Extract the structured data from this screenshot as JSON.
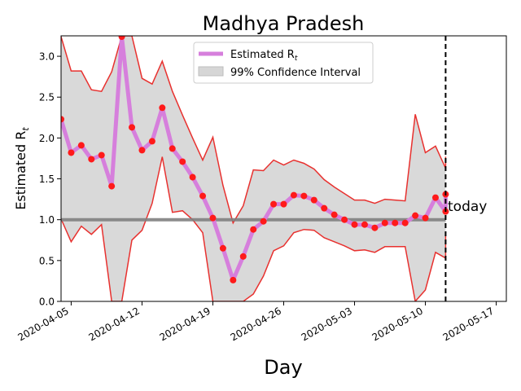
{
  "chart_data": {
    "type": "line",
    "title": "Madhya Pradesh",
    "xlabel": "Day",
    "ylabel": "Estimated R",
    "ylabel_sub": "t",
    "start_date": "2020-04-04",
    "xlim": [
      "2020-04-04",
      "2020-05-18"
    ],
    "ylim": [
      0,
      3.25
    ],
    "x_ticks": [
      "2020-04-05",
      "2020-04-12",
      "2020-04-19",
      "2020-04-26",
      "2020-05-03",
      "2020-05-10",
      "2020-05-17"
    ],
    "y_ticks": [
      "0.0",
      "0.5",
      "1.0",
      "1.5",
      "2.0",
      "2.5",
      "3.0"
    ],
    "grid": false,
    "legend_position": "top-center",
    "legend": [
      {
        "label": "Estimated R",
        "sub": "t",
        "color": "#d67fdc"
      },
      {
        "label": "99% Confidence Interval",
        "color": "#d6d6d6"
      }
    ],
    "today_label": "today",
    "today_date": "2020-05-12",
    "reference_line": 1.0,
    "colors": {
      "estimate_line": "#d67fdc",
      "points": "#ff1a1a",
      "bounds": "#e8312f",
      "ci_fill": "#d9d9d9",
      "reference": "#7f7f7f"
    },
    "series": [
      {
        "name": "Estimated R",
        "x": [
          "2020-04-04",
          "2020-04-05",
          "2020-04-06",
          "2020-04-07",
          "2020-04-08",
          "2020-04-09",
          "2020-04-10",
          "2020-04-11",
          "2020-04-12",
          "2020-04-13",
          "2020-04-14",
          "2020-04-15",
          "2020-04-16",
          "2020-04-17",
          "2020-04-18",
          "2020-04-19",
          "2020-04-20",
          "2020-04-21",
          "2020-04-22",
          "2020-04-23",
          "2020-04-24",
          "2020-04-25",
          "2020-04-26",
          "2020-04-27",
          "2020-04-28",
          "2020-04-29",
          "2020-04-30",
          "2020-05-01",
          "2020-05-02",
          "2020-05-03",
          "2020-05-04",
          "2020-05-05",
          "2020-05-06",
          "2020-05-07",
          "2020-05-08",
          "2020-05-09",
          "2020-05-10",
          "2020-05-11",
          "2020-05-12"
        ],
        "values": [
          2.23,
          1.82,
          1.91,
          1.74,
          1.79,
          1.41,
          3.24,
          2.13,
          1.85,
          1.96,
          2.37,
          1.87,
          1.71,
          1.52,
          1.29,
          1.02,
          0.65,
          0.26,
          0.55,
          0.88,
          0.98,
          1.19,
          1.19,
          1.3,
          1.29,
          1.24,
          1.14,
          1.06,
          1.0,
          0.94,
          0.94,
          0.9,
          0.96,
          0.96,
          0.96,
          1.05,
          1.02,
          1.27,
          1.1
        ]
      },
      {
        "name": "upper",
        "values": [
          3.24,
          2.82,
          2.82,
          2.59,
          2.57,
          2.81,
          3.25,
          3.25,
          2.73,
          2.66,
          2.94,
          2.57,
          2.28,
          2.0,
          1.73,
          2.01,
          1.42,
          0.96,
          1.17,
          1.61,
          1.6,
          1.73,
          1.67,
          1.73,
          1.69,
          1.62,
          1.49,
          1.4,
          1.32,
          1.24,
          1.24,
          1.2,
          1.25,
          1.24,
          1.23,
          2.29,
          1.82,
          1.9,
          1.63
        ]
      },
      {
        "name": "lower",
        "values": [
          1.01,
          0.73,
          0.92,
          0.82,
          0.94,
          0.0,
          0.0,
          0.75,
          0.87,
          1.2,
          1.77,
          1.09,
          1.11,
          1.0,
          0.84,
          0.0,
          0.0,
          0.0,
          0.0,
          0.09,
          0.31,
          0.62,
          0.68,
          0.84,
          0.88,
          0.87,
          0.78,
          0.73,
          0.68,
          0.62,
          0.63,
          0.6,
          0.67,
          0.67,
          0.67,
          0.0,
          0.14,
          0.6,
          0.53
        ]
      }
    ],
    "today_series_extension": {
      "date": "2020-05-12",
      "estimate": 1.31,
      "upper": 1.77,
      "lower": 0.8
    }
  }
}
